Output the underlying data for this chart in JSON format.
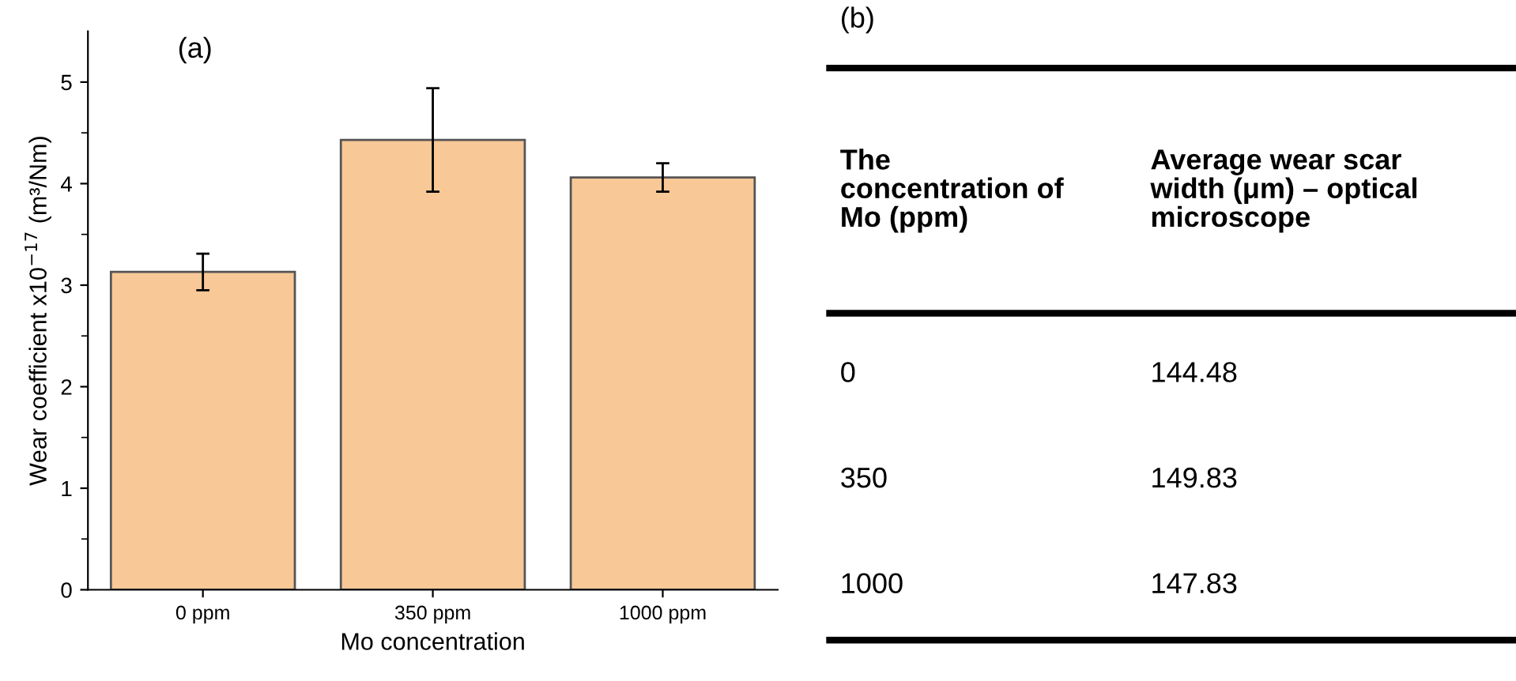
{
  "chart_data": [
    {
      "type": "bar",
      "title": "(a)",
      "xlabel": "Mo concentration",
      "ylabel": "Wear coefficient x10$^{−17}$ (m³/Nm)",
      "categories": [
        "0 ppm",
        "350 ppm",
        "1000 ppm"
      ],
      "values": [
        3.13,
        4.43,
        4.06
      ],
      "errors": [
        0.18,
        0.51,
        0.14
      ],
      "color": "#f9c897",
      "ylim": [
        0,
        5.5
      ],
      "yticks": [
        0,
        {
          "value": 0.5,
          "label": null
        },
        1,
        {
          "value": 1.5,
          "label": null
        },
        2,
        {
          "value": 2.5,
          "label": null
        },
        3,
        {
          "value": 3.5,
          "label": null
        },
        4,
        {
          "value": 4.5,
          "label": null
        },
        5
      ],
      "grid": false,
      "legend": false
    },
    {
      "type": "other",
      "title": "(b)",
      "annotations": [
        "The\nconcentration of\nMo (ppm)",
        "Average wear scar\nwidth (μm) – optical\nmicroscope",
        "0",
        "144.48",
        "350",
        "149.83",
        "1000",
        "147.83"
      ]
    }
  ]
}
